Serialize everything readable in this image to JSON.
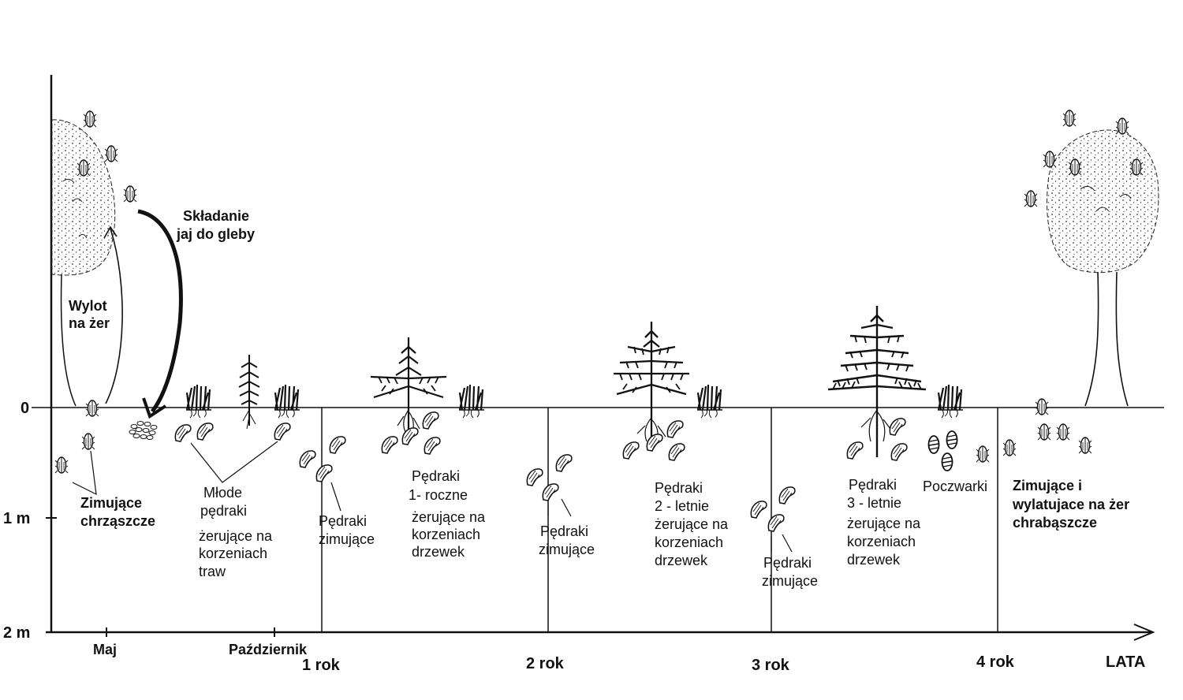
{
  "depth_axis": {
    "top": "0",
    "middle": "1 m",
    "bottom": "2 m"
  },
  "time_axis": {
    "month1": "Maj",
    "month2": "Październik",
    "y1": "1 rok",
    "y2": "2 rok",
    "y3": "3 rok",
    "y4": "4 rok",
    "unit": "LATA"
  },
  "labels": {
    "emergence": [
      "Wylot",
      "na żer"
    ],
    "egg_laying": [
      "Składanie",
      "jaj do gleby"
    ],
    "overwintering_beetles": [
      "Zimujące",
      "chrząszcze"
    ],
    "young_grubs": [
      "Młode",
      "pędraki"
    ],
    "young_grubs_feeding": [
      "żerujące na",
      "korzeniach",
      "traw"
    ],
    "grubs_winter_1": [
      "Pędraki",
      "zimujące"
    ],
    "grubs_1year": [
      "Pędraki",
      "1- roczne",
      "żerujące na",
      "korzeniach",
      "drzewek"
    ],
    "grubs_winter_2": [
      "Pędraki",
      "zimujące"
    ],
    "grubs_2year": [
      "Pędraki",
      "2 - letnie",
      "żerujące na",
      "korzeniach",
      "drzewek"
    ],
    "grubs_winter_3": [
      "Pędraki",
      "zimujące"
    ],
    "grubs_3year": [
      "Pędraki",
      "3 - letnie",
      "żerujące na",
      "korzeniach",
      "drzewek"
    ],
    "pupae": "Poczwarki",
    "adults_final": [
      "Zimujące i",
      "wylatujace na żer",
      "chrabąszcze"
    ]
  }
}
